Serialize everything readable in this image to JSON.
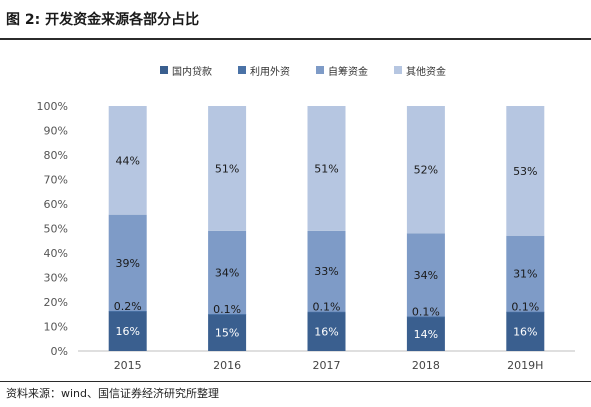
{
  "figure": {
    "title": "图 2:  开发资金来源各部分占比",
    "source": "资料来源：wind、国信证券经济研究所整理"
  },
  "chart_data": {
    "type": "bar",
    "stacked": true,
    "categories": [
      "2015",
      "2016",
      "2017",
      "2018",
      "2019H"
    ],
    "series": [
      {
        "name": "国内贷款",
        "color": "#3a5f8f",
        "values": [
          16,
          15,
          16,
          14,
          16
        ],
        "labels": [
          "16%",
          "15%",
          "16%",
          "14%",
          "16%"
        ]
      },
      {
        "name": "利用外资",
        "color": "#4a72a6",
        "values": [
          0.2,
          0.1,
          0.1,
          0.1,
          0.1
        ],
        "labels": [
          "0.2%",
          "0.1%",
          "0.1%",
          "0.1%",
          "0.1%"
        ]
      },
      {
        "name": "自筹资金",
        "color": "#7e9bc7",
        "values": [
          39,
          34,
          33,
          34,
          31
        ],
        "labels": [
          "39%",
          "34%",
          "33%",
          "34%",
          "31%"
        ]
      },
      {
        "name": "其他资金",
        "color": "#b6c6e1",
        "values": [
          44,
          51,
          51,
          52,
          53
        ],
        "labels": [
          "44%",
          "51%",
          "51%",
          "52%",
          "53%"
        ]
      }
    ],
    "yticks": [
      "0%",
      "10%",
      "20%",
      "30%",
      "40%",
      "50%",
      "60%",
      "70%",
      "80%",
      "90%",
      "100%"
    ],
    "ylim": [
      0,
      100
    ],
    "legend_position": "top",
    "grid": false
  }
}
